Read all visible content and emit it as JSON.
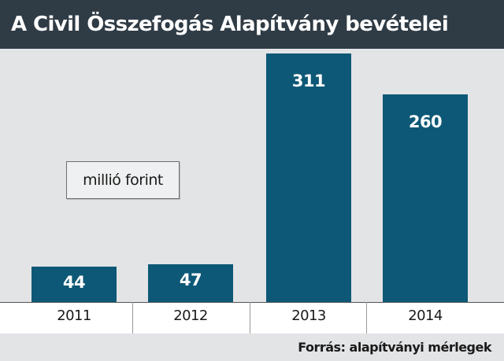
{
  "chart_data": {
    "type": "bar",
    "title": "A Civil Összefogás Alapítvány bevételei",
    "unit_label": "millió forint",
    "source": "Forrás: alapítványi mérlegek",
    "categories": [
      "2011",
      "2012",
      "2013",
      "2014"
    ],
    "values": [
      44,
      47,
      311,
      260
    ],
    "data_labels": [
      "44",
      "47",
      "311",
      "260"
    ],
    "ylim": [
      0,
      320
    ],
    "grid": false,
    "colors": {
      "bar": "#0d5876",
      "title_background": "#2f3b45",
      "plot_background": "#e3e4e6"
    }
  }
}
